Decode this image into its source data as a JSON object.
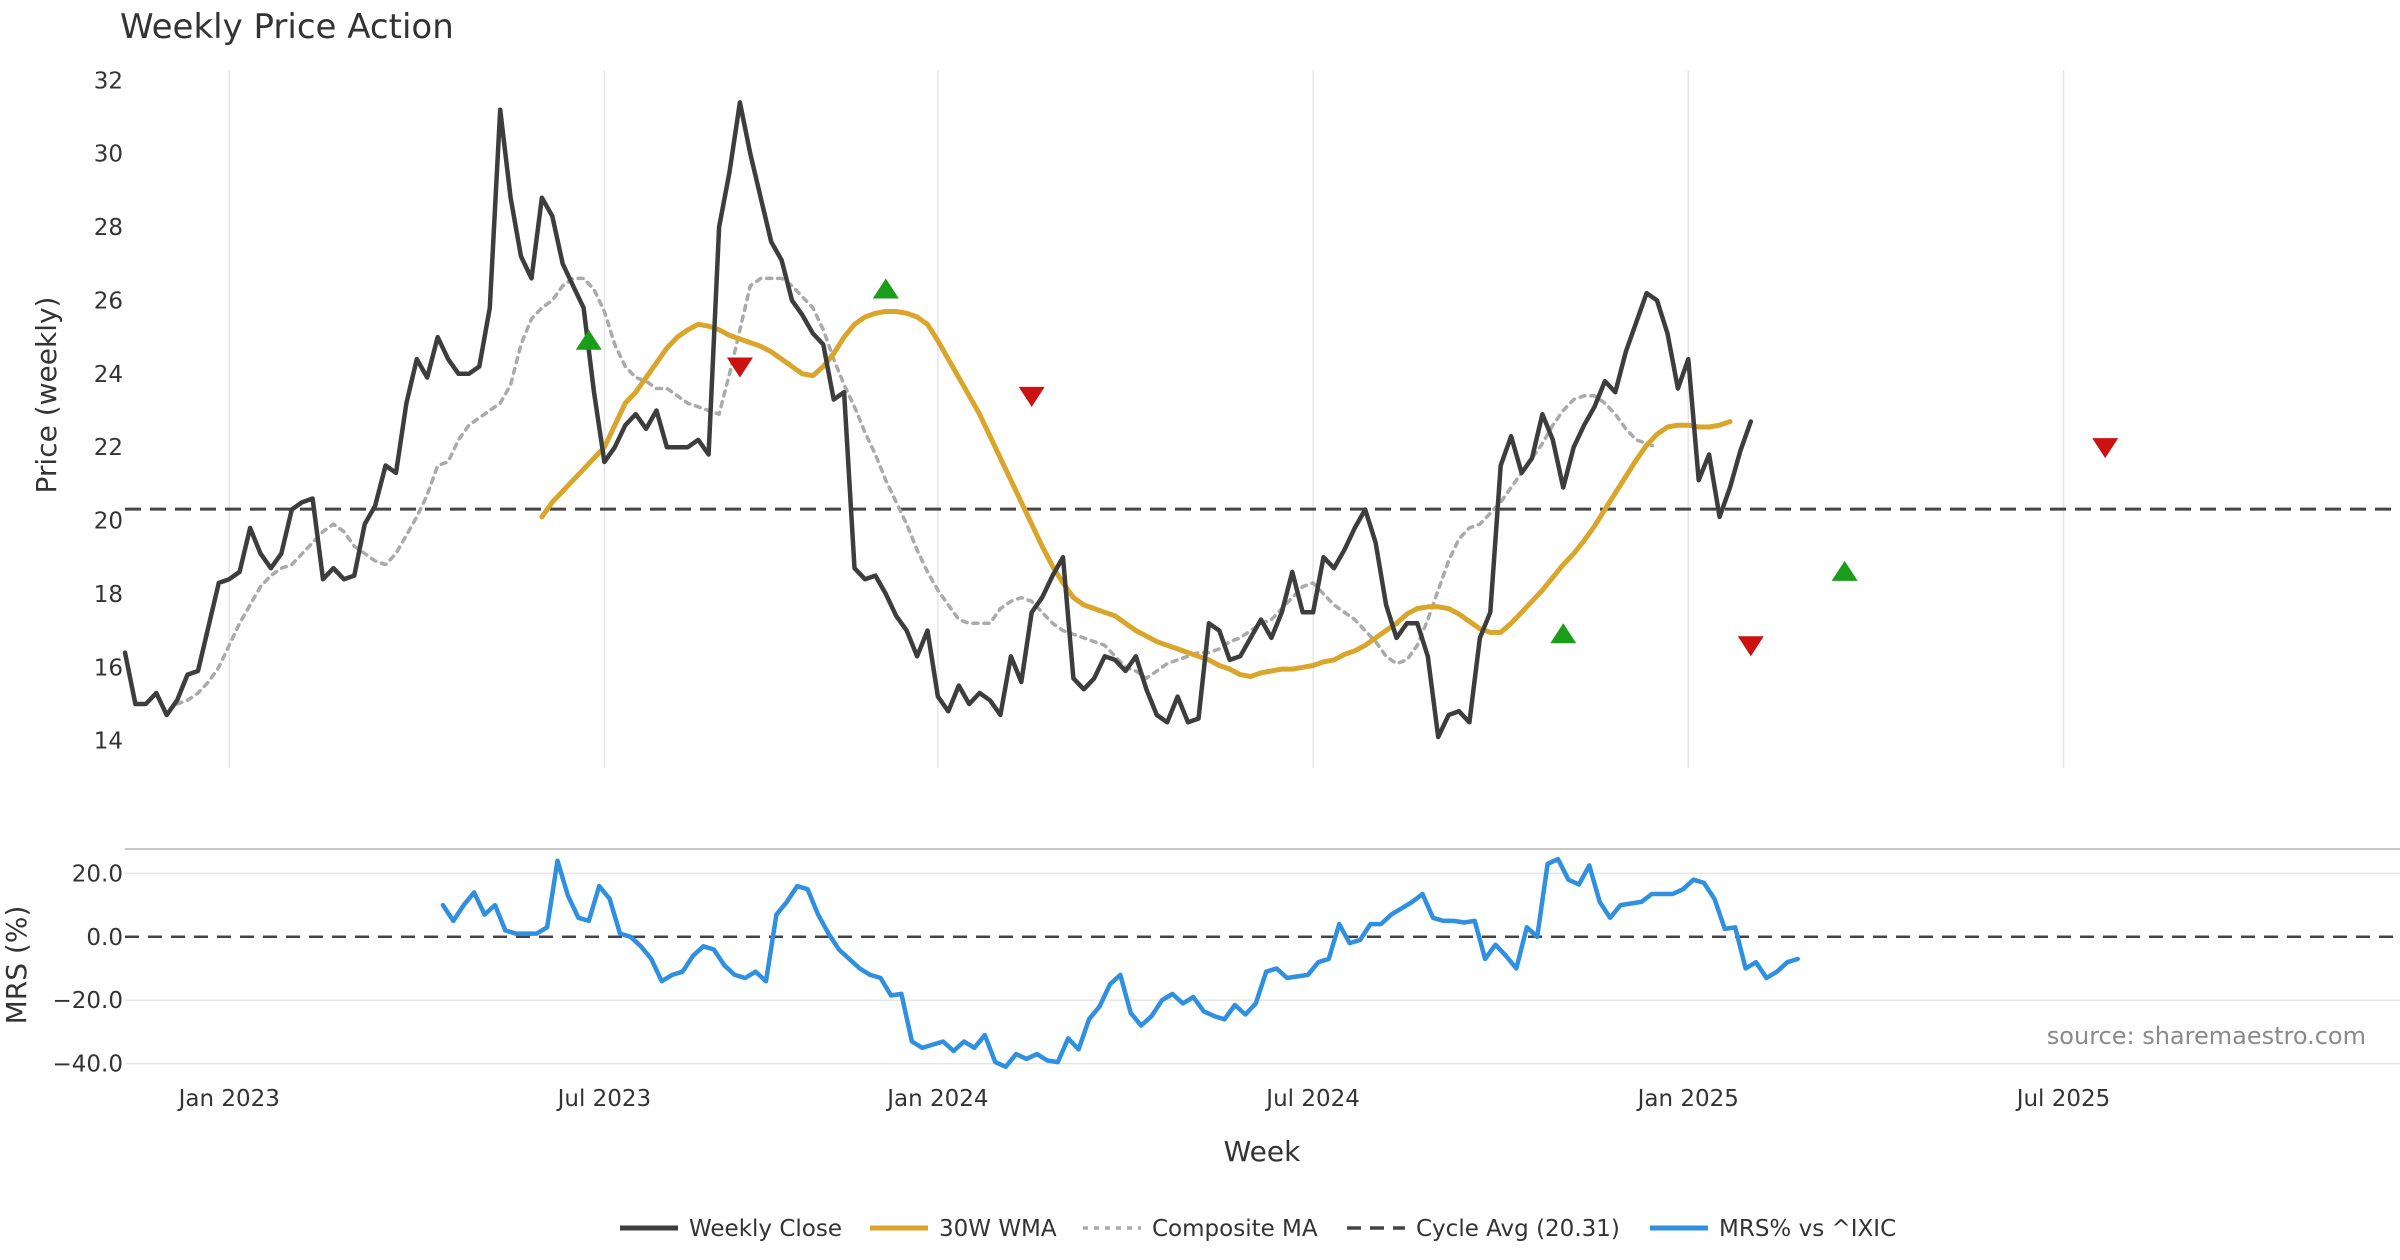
{
  "chart_data": {
    "type": "line",
    "title": "Weekly Price Action",
    "x_axis": {
      "label": "Week",
      "range_weeks": [
        0,
        218
      ],
      "ticks": [
        {
          "label": "Jan 2023",
          "week": 10
        },
        {
          "label": "Jul 2023",
          "week": 46
        },
        {
          "label": "Jan 2024",
          "week": 78
        },
        {
          "label": "Jul 2024",
          "week": 114
        },
        {
          "label": "Jan 2025",
          "week": 150
        },
        {
          "label": "Jul 2025",
          "week": 186
        }
      ]
    },
    "price_panel": {
      "ylabel": "Price (weekly)",
      "ylim": [
        13.2,
        32.5
      ],
      "yticks": [
        14,
        16,
        18,
        20,
        22,
        24,
        26,
        28,
        30,
        32
      ],
      "cycle_avg": 20.31,
      "series": [
        {
          "name": "Weekly Close",
          "color": "#3d3d3d",
          "start_week": 0,
          "values": [
            16.4,
            15.0,
            15.0,
            15.3,
            14.7,
            15.1,
            15.8,
            15.9,
            17.1,
            18.3,
            18.4,
            18.6,
            19.8,
            19.1,
            18.7,
            19.1,
            20.3,
            20.5,
            20.6,
            18.4,
            18.7,
            18.4,
            18.5,
            19.9,
            20.4,
            21.5,
            21.3,
            23.2,
            24.4,
            23.9,
            25.0,
            24.4,
            24.0,
            24.0,
            24.2,
            25.8,
            31.2,
            28.8,
            27.2,
            26.6,
            28.8,
            28.3,
            27.0,
            26.4,
            25.8,
            23.5,
            21.6,
            22.0,
            22.6,
            22.9,
            22.5,
            23.0,
            22.0,
            22.0,
            22.0,
            22.2,
            21.8,
            28.0,
            29.5,
            31.4,
            30.0,
            28.8,
            27.6,
            27.1,
            26.0,
            25.6,
            25.1,
            24.8,
            23.3,
            23.5,
            18.7,
            18.4,
            18.5,
            18.0,
            17.4,
            17.0,
            16.3,
            17.0,
            15.2,
            14.8,
            15.5,
            15.0,
            15.3,
            15.1,
            14.7,
            16.3,
            15.6,
            17.5,
            17.9,
            18.5,
            19.0,
            15.7,
            15.4,
            15.7,
            16.3,
            16.2,
            15.9,
            16.3,
            15.4,
            14.7,
            14.5,
            15.2,
            14.5,
            14.6,
            17.2,
            17.0,
            16.2,
            16.3,
            16.8,
            17.3,
            16.8,
            17.5,
            18.6,
            17.5,
            17.5,
            19.0,
            18.7,
            19.2,
            19.8,
            20.3,
            19.4,
            17.7,
            16.8,
            17.2,
            17.2,
            16.3,
            14.1,
            14.7,
            14.8,
            14.5,
            16.8,
            17.5,
            21.5,
            22.3,
            21.3,
            21.7,
            22.9,
            22.2,
            20.9,
            22.0,
            22.6,
            23.1,
            23.8,
            23.5,
            24.6,
            25.4,
            26.2,
            26.0,
            25.1,
            23.6,
            24.4,
            21.1,
            21.8,
            20.1,
            20.9,
            21.9,
            22.7
          ]
        },
        {
          "name": "30W WMA",
          "color": "#d9a52a",
          "start_week": 40,
          "values": [
            20.1,
            20.5,
            20.8,
            21.1,
            21.4,
            21.7,
            22.0,
            22.6,
            23.2,
            23.5,
            23.9,
            24.3,
            24.7,
            25.0,
            25.2,
            25.35,
            25.3,
            25.2,
            25.05,
            24.95,
            24.85,
            24.75,
            24.6,
            24.4,
            24.2,
            24.0,
            23.95,
            24.2,
            24.55,
            25.0,
            25.35,
            25.55,
            25.65,
            25.7,
            25.7,
            25.65,
            25.55,
            25.35,
            24.9,
            24.4,
            23.9,
            23.4,
            22.9,
            22.3,
            21.7,
            21.1,
            20.5,
            19.9,
            19.3,
            18.75,
            18.3,
            17.9,
            17.7,
            17.6,
            17.5,
            17.4,
            17.2,
            17.0,
            16.85,
            16.7,
            16.6,
            16.5,
            16.4,
            16.3,
            16.2,
            16.05,
            15.95,
            15.8,
            15.75,
            15.85,
            15.9,
            15.95,
            15.95,
            16.0,
            16.05,
            16.15,
            16.2,
            16.35,
            16.45,
            16.6,
            16.8,
            17.0,
            17.2,
            17.45,
            17.6,
            17.65,
            17.65,
            17.6,
            17.45,
            17.25,
            17.05,
            16.95,
            16.95,
            17.2,
            17.5,
            17.8,
            18.1,
            18.45,
            18.8,
            19.1,
            19.45,
            19.85,
            20.3,
            20.75,
            21.2,
            21.65,
            22.05,
            22.35,
            22.55,
            22.6,
            22.6,
            22.55,
            22.55,
            22.6,
            22.7
          ]
        },
        {
          "name": "Composite MA",
          "color": "#aaaaaa",
          "start_week": 5,
          "values": [
            15.0,
            15.1,
            15.3,
            15.6,
            16.0,
            16.6,
            17.2,
            17.7,
            18.2,
            18.5,
            18.7,
            18.8,
            19.1,
            19.4,
            19.7,
            19.9,
            19.7,
            19.3,
            19.1,
            18.9,
            18.8,
            19.1,
            19.6,
            20.1,
            20.7,
            21.5,
            21.6,
            22.2,
            22.6,
            22.8,
            23.0,
            23.2,
            23.7,
            24.8,
            25.5,
            25.8,
            26.0,
            26.4,
            26.6,
            26.6,
            26.3,
            25.7,
            24.8,
            24.2,
            23.9,
            23.8,
            23.6,
            23.6,
            23.4,
            23.2,
            23.1,
            23.0,
            22.9,
            24.0,
            25.2,
            26.4,
            26.6,
            26.6,
            26.6,
            26.4,
            26.1,
            25.8,
            25.2,
            24.4,
            23.7,
            23.1,
            22.4,
            21.8,
            21.1,
            20.5,
            19.9,
            19.2,
            18.6,
            18.1,
            17.7,
            17.3,
            17.2,
            17.2,
            17.2,
            17.6,
            17.8,
            17.9,
            17.8,
            17.5,
            17.2,
            17.0,
            16.9,
            16.8,
            16.7,
            16.6,
            16.3,
            16.0,
            15.9,
            15.7,
            15.9,
            16.1,
            16.2,
            16.3,
            16.4,
            16.4,
            16.5,
            16.7,
            16.8,
            17.0,
            17.2,
            17.3,
            17.6,
            17.9,
            18.2,
            18.3,
            18.0,
            17.7,
            17.5,
            17.3,
            17.0,
            16.7,
            16.3,
            16.1,
            16.2,
            16.6,
            17.3,
            18.1,
            18.9,
            19.5,
            19.8,
            19.9,
            20.2,
            20.5,
            20.9,
            21.3,
            21.7,
            22.1,
            22.6,
            23.0,
            23.3,
            23.4,
            23.4,
            23.2,
            22.9,
            22.5,
            22.2,
            22.1,
            22.0
          ]
        }
      ],
      "signals": [
        {
          "type": "buy",
          "week": 44.5,
          "price": 24.9
        },
        {
          "type": "sell",
          "week": 59,
          "price": 24.2
        },
        {
          "type": "buy",
          "week": 73,
          "price": 26.3
        },
        {
          "type": "sell",
          "week": 87,
          "price": 23.4
        },
        {
          "type": "buy",
          "week": 138,
          "price": 16.9
        },
        {
          "type": "sell",
          "week": 156,
          "price": 16.6
        },
        {
          "type": "buy",
          "week": 165,
          "price": 18.6
        },
        {
          "type": "sell",
          "week": 190,
          "price": 22.0
        }
      ]
    },
    "mrs_panel": {
      "ylabel": "MRS (%)",
      "ylim": [
        -42,
        28
      ],
      "yticks": [
        "20.0",
        "0.0",
        "−20.0",
        "−40.0"
      ],
      "ytick_values": [
        20,
        0,
        -20,
        -40
      ],
      "zero_line": 0,
      "series": [
        {
          "name": "MRS% vs ^IXIC",
          "color": "#2f8fe0",
          "start_week": 30.5,
          "values": [
            10.0,
            5.0,
            10.0,
            14.0,
            7.0,
            10.0,
            2.0,
            1.0,
            1.0,
            1.0,
            3.0,
            24.0,
            13.0,
            6.0,
            5.0,
            16.0,
            12.0,
            1.0,
            0.0,
            -3.0,
            -7.0,
            -14.0,
            -12.0,
            -11.0,
            -6.0,
            -3.0,
            -4.0,
            -9.0,
            -12.0,
            -13.0,
            -11.0,
            -14.0,
            7.0,
            11.0,
            16.0,
            15.0,
            7.0,
            1.0,
            -4.0,
            -7.0,
            -10.0,
            -12.0,
            -13.0,
            -18.5,
            -18.0,
            -33.0,
            -35.0,
            -34.0,
            -33.0,
            -36.0,
            -33.0,
            -35.0,
            -31.0,
            -39.5,
            -41.0,
            -37.0,
            -38.5,
            -37.0,
            -39.0,
            -39.5,
            -32.0,
            -35.5,
            -26.0,
            -22.0,
            -15.0,
            -12.0,
            -24.0,
            -28.0,
            -25.0,
            -20.0,
            -18.0,
            -21.0,
            -19.0,
            -23.5,
            -25.0,
            -26.0,
            -21.5,
            -24.5,
            -21.0,
            -11.0,
            -10.0,
            -13.0,
            -12.5,
            -12.0,
            -8.0,
            -7.0,
            4.0,
            -2.0,
            -1.0,
            4.0,
            4.0,
            7.0,
            9.0,
            11.0,
            13.5,
            6.0,
            5.0,
            5.0,
            4.5,
            5.0,
            -7.0,
            -2.5,
            -6.0,
            -10.0,
            3.0,
            0.0,
            23.0,
            24.5,
            18.0,
            16.5,
            22.5,
            11.0,
            6.0,
            10.0,
            10.5,
            11.0,
            13.5,
            13.5,
            13.5,
            15.0,
            18.0,
            17.0,
            12.0,
            2.5,
            3.0,
            -10.0,
            -8.0,
            -13.0,
            -11.0,
            -8.0,
            -7.0
          ]
        }
      ]
    },
    "legend": [
      {
        "label": "Weekly Close",
        "style": "solid",
        "color": "#3d3d3d"
      },
      {
        "label": "30W WMA",
        "style": "solid",
        "color": "#d9a52a"
      },
      {
        "label": "Composite MA",
        "style": "dotted",
        "color": "#aaaaaa"
      },
      {
        "label": "Cycle Avg (20.31)",
        "style": "dashed",
        "color": "#444444"
      },
      {
        "label": "MRS% vs ^IXIC",
        "style": "solid",
        "color": "#2f8fe0"
      }
    ],
    "legend_position": "bottom-center",
    "source_note": "source: sharemaestro.com",
    "colors": {
      "buy": "#1a9e1a",
      "sell": "#cc1111",
      "grid": "#e6e6e6",
      "reference": "#444444"
    }
  }
}
